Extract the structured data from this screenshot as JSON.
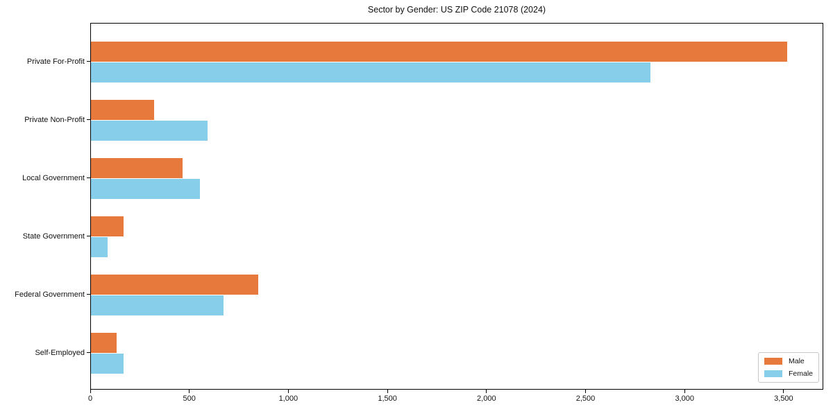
{
  "chart_data": {
    "type": "bar",
    "orientation": "horizontal",
    "title": "Sector by Gender: US ZIP Code 21078 (2024)",
    "categories": [
      "Private For-Profit",
      "Private Non-Profit",
      "Local Government",
      "State Government",
      "Federal Government",
      "Self-Employed"
    ],
    "series": [
      {
        "name": "Male",
        "color": "#e8793d",
        "values": [
          3520,
          320,
          465,
          165,
          845,
          130
        ]
      },
      {
        "name": "Female",
        "color": "#87ceeb",
        "values": [
          2830,
          590,
          550,
          85,
          670,
          165
        ]
      }
    ],
    "xlabel": "",
    "ylabel": "",
    "xlim": [
      0,
      3700
    ],
    "x_ticks": [
      0,
      500,
      1000,
      1500,
      2000,
      2500,
      3000,
      3500
    ],
    "x_tick_labels": [
      "0",
      "500",
      "1,000",
      "1,500",
      "2,000",
      "2,500",
      "3,000",
      "3,500"
    ],
    "grid": false,
    "legend_position": "lower right",
    "bar_group_order_note": "Male bar drawn above Female bar in each category group"
  }
}
